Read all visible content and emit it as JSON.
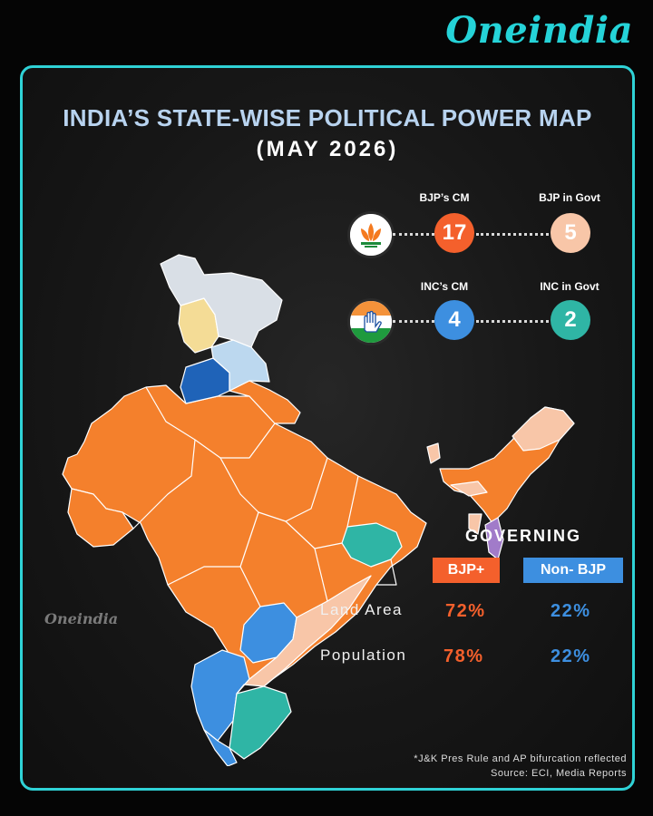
{
  "brand": "Oneindia",
  "watermark": "Oneindia",
  "title": "INDIA’S STATE-WISE POLITICAL POWER MAP",
  "subtitle": "(MAY 2026)",
  "colors": {
    "bjp": "#f4802c",
    "bjp_ally": "#f8c6a8",
    "inc": "#3d8fe0",
    "inc_ally": "#2fb5a5",
    "pres_rule": "#d9dfe6",
    "light_yellow": "#f4dc96",
    "light_blue": "#bcd8ef",
    "dark_blue": "#1f63b8",
    "purple": "#a17bc9",
    "accent": "#2fd2d6"
  },
  "stats": {
    "bjp_cm": {
      "label": "BJP’s CM",
      "value": "17"
    },
    "bjp_govt": {
      "label": "BJP in Govt",
      "value": "5"
    },
    "inc_cm": {
      "label": "INC’s CM",
      "value": "4"
    },
    "inc_govt": {
      "label": "INC in Govt",
      "value": "2"
    }
  },
  "governing": {
    "heading": "GOVERNING",
    "bjp_label": "BJP+",
    "non_bjp_label": "Non- BJP",
    "rows": [
      {
        "label": "Land Area",
        "bjp": "72%",
        "non_bjp": "22%"
      },
      {
        "label": "Population",
        "bjp": "78%",
        "non_bjp": "22%"
      }
    ]
  },
  "footnote": {
    "line1": "*J&K Pres Rule and AP bifurcation reflected",
    "line2": "Source: ECI, Media Reports"
  }
}
